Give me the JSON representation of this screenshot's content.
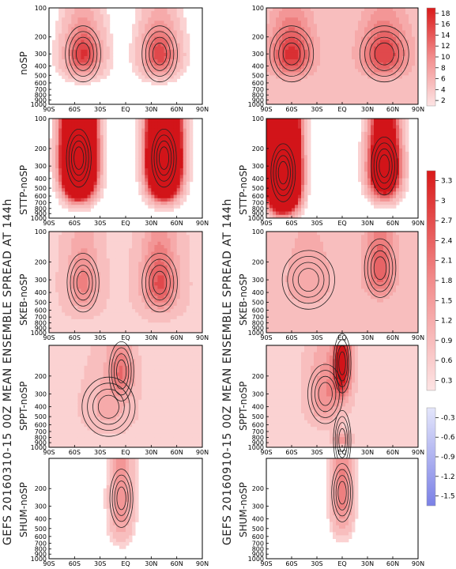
{
  "chart_data": {
    "type": "heatmap",
    "title": "",
    "side_titles": [
      "GEFS 20160310-15 00Z MEAN ENSEMBLE SPREAD AT 144h",
      "GEFS 20160910-15 00Z MEAN ENSEMBLE SPREAD AT 144h"
    ],
    "row_labels": [
      "noSP",
      "STTP-noSP",
      "SKEB-noSP",
      "SPPT-noSP",
      "SHUM-noSP"
    ],
    "x_ticks": [
      "90S",
      "60S",
      "30S",
      "EQ",
      "30N",
      "60N",
      "90N"
    ],
    "y_ticks": [
      "100",
      "200",
      "300",
      "400",
      "500",
      "600",
      "700",
      "800",
      "900",
      "1000"
    ],
    "y_ticks_compact": [
      "200",
      "300",
      "400",
      "500",
      "600",
      "700",
      "800",
      "900",
      "1000"
    ],
    "colorbar_top": [
      "18",
      "16",
      "14",
      "12",
      "10",
      "8",
      "6",
      "4",
      "2"
    ],
    "colorbar_bottom_pos": [
      "3.3",
      "3",
      "2.7",
      "2.4",
      "2.1",
      "1.8",
      "1.5",
      "1.2",
      "0.9",
      "0.6",
      "0.3"
    ],
    "colorbar_bottom_neg": [
      "-0.3",
      "-0.6",
      "-0.9",
      "-1.2",
      "-1.5"
    ],
    "panels": [
      [
        {
          "blobs": [
            {
              "lat": -50,
              "p": 300,
              "amp": 14,
              "wx": 20,
              "wp": 180
            },
            {
              "lat": 40,
              "p": 300,
              "amp": 13,
              "wx": 20,
              "wp": 180
            }
          ],
          "vmax": 18,
          "bg": 0.5
        },
        {
          "blobs": [
            {
              "lat": -55,
              "p": 250,
              "amp": 30,
              "wx": 14,
              "wp": 260
            },
            {
              "lat": 45,
              "p": 250,
              "amp": 26,
              "wx": 14,
              "wp": 260
            }
          ],
          "vmax": 3.3,
          "bg": 0.1
        },
        {
          "blobs": [
            {
              "lat": -50,
              "p": 320,
              "amp": 1.3,
              "wx": 18,
              "wp": 250
            },
            {
              "lat": 40,
              "p": 320,
              "amp": 2.0,
              "wx": 20,
              "wp": 260
            }
          ],
          "vmax": 3.3,
          "bg": 0.3
        },
        {
          "blobs": [
            {
              "lat": -5,
              "p": 180,
              "amp": 1.4,
              "wx": 14,
              "wp": 120
            },
            {
              "lat": -20,
              "p": 400,
              "amp": 0.7,
              "wx": 30,
              "wp": 300
            }
          ],
          "vmax": 3.3,
          "bg": 0.2
        },
        {
          "blobs": [
            {
              "lat": -5,
              "p": 250,
              "amp": 1.4,
              "wx": 13,
              "wp": 350
            }
          ],
          "vmax": 3.3,
          "bg": 0.05
        }
      ],
      [
        {
          "blobs": [
            {
              "lat": -60,
              "p": 300,
              "amp": 13,
              "wx": 25,
              "wp": 200
            },
            {
              "lat": 50,
              "p": 300,
              "amp": 12,
              "wx": 28,
              "wp": 200
            }
          ],
          "vmax": 18,
          "bg": 2
        },
        {
          "blobs": [
            {
              "lat": -70,
              "p": 350,
              "amp": 30,
              "wx": 14,
              "wp": 350
            },
            {
              "lat": 50,
              "p": 300,
              "amp": 9,
              "wx": 15,
              "wp": 250
            }
          ],
          "vmax": 3.3,
          "bg": 0.05
        },
        {
          "blobs": [
            {
              "lat": 45,
              "p": 230,
              "amp": 1.8,
              "wx": 18,
              "wp": 200
            },
            {
              "lat": -40,
              "p": 300,
              "amp": 0.7,
              "wx": 30,
              "wp": 250
            }
          ],
          "vmax": 3.3,
          "bg": 0.4
        },
        {
          "blobs": [
            {
              "lat": 0,
              "p": 150,
              "amp": 3.3,
              "wx": 10,
              "wp": 150
            },
            {
              "lat": -20,
              "p": 300,
              "amp": 1.2,
              "wx": 20,
              "wp": 250
            },
            {
              "lat": 0,
              "p": 850,
              "amp": 1.2,
              "wx": 10,
              "wp": 120
            }
          ],
          "vmax": 3.3,
          "bg": 0.25
        },
        {
          "blobs": [
            {
              "lat": 0,
              "p": 220,
              "amp": 1.6,
              "wx": 12,
              "wp": 300
            }
          ],
          "vmax": 3.3,
          "bg": 0.05
        }
      ]
    ]
  }
}
